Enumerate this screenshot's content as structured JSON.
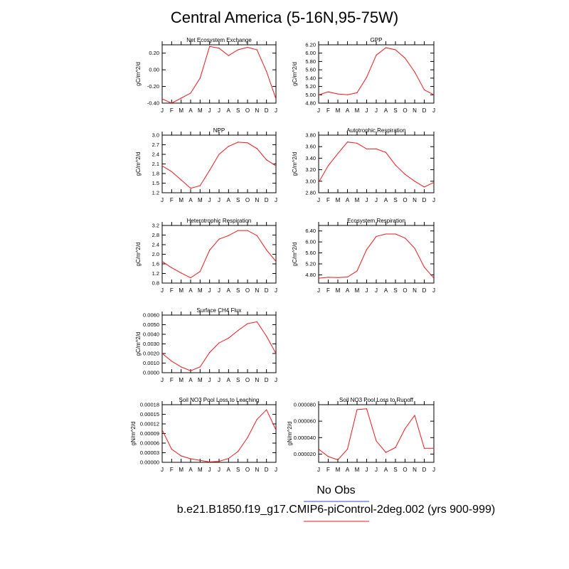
{
  "title": "Central America (5-16N,95-75W)",
  "legend": {
    "obs_label": "No Obs",
    "obs_color": "#3b47d6",
    "model_label": "b.e21.B1850.f19_g17.CMIP6-piControl-2deg.002 (yrs 900-999)",
    "model_color": "#e8191e"
  },
  "months": [
    "J",
    "F",
    "M",
    "A",
    "M",
    "J",
    "J",
    "A",
    "S",
    "O",
    "N",
    "D",
    "J"
  ],
  "chart_data": [
    {
      "type": "line",
      "title": "Net Ecosystem Exchange",
      "ylabel": "gC/m^2/d",
      "ylim": [
        -0.4,
        0.3
      ],
      "yticks": [
        -0.4,
        -0.2,
        0.0,
        0.2
      ],
      "ytick_labels": [
        "-0.40",
        "-0.20",
        "0.00",
        "0.20"
      ],
      "x": [
        "J",
        "F",
        "M",
        "A",
        "M",
        "J",
        "J",
        "A",
        "S",
        "O",
        "N",
        "D",
        "J"
      ],
      "series": [
        {
          "values": [
            -0.35,
            -0.4,
            -0.34,
            -0.28,
            -0.1,
            0.28,
            0.26,
            0.17,
            0.24,
            0.27,
            0.24,
            -0.02,
            -0.35
          ]
        }
      ]
    },
    {
      "type": "line",
      "title": "GPP",
      "ylabel": "gC/m^2/d",
      "ylim": [
        4.8,
        6.2
      ],
      "yticks": [
        4.8,
        5.0,
        5.2,
        5.4,
        5.6,
        5.8,
        6.0,
        6.2
      ],
      "ytick_labels": [
        "4.80",
        "5.00",
        "5.20",
        "5.40",
        "5.60",
        "5.80",
        "6.00",
        "6.20"
      ],
      "x": [
        "J",
        "F",
        "M",
        "A",
        "M",
        "J",
        "J",
        "A",
        "S",
        "O",
        "N",
        "D",
        "J"
      ],
      "series": [
        {
          "values": [
            5.0,
            5.07,
            5.02,
            5.0,
            5.05,
            5.42,
            5.95,
            6.13,
            6.08,
            5.88,
            5.55,
            5.12,
            5.0
          ]
        }
      ]
    },
    {
      "type": "line",
      "title": "NPP",
      "ylabel": "gC/m^2/d",
      "ylim": [
        1.2,
        3.0
      ],
      "yticks": [
        1.2,
        1.5,
        1.8,
        2.1,
        2.4,
        2.7,
        3.0
      ],
      "ytick_labels": [
        "1.2",
        "1.5",
        "1.8",
        "2.1",
        "2.4",
        "2.7",
        "3.0"
      ],
      "x": [
        "J",
        "F",
        "M",
        "A",
        "M",
        "J",
        "J",
        "A",
        "S",
        "O",
        "N",
        "D",
        "J"
      ],
      "series": [
        {
          "values": [
            2.04,
            1.86,
            1.6,
            1.34,
            1.42,
            1.9,
            2.4,
            2.65,
            2.78,
            2.76,
            2.58,
            2.23,
            2.04
          ]
        }
      ]
    },
    {
      "type": "line",
      "title": "Autotrophic Respiration",
      "ylabel": "gC/m^2/d",
      "ylim": [
        2.8,
        3.8
      ],
      "yticks": [
        2.8,
        3.0,
        3.2,
        3.4,
        3.6,
        3.8
      ],
      "ytick_labels": [
        "2.80",
        "3.00",
        "3.20",
        "3.40",
        "3.60",
        "3.80"
      ],
      "x": [
        "J",
        "F",
        "M",
        "A",
        "M",
        "J",
        "J",
        "A",
        "S",
        "O",
        "N",
        "D",
        "J"
      ],
      "series": [
        {
          "values": [
            2.98,
            3.27,
            3.48,
            3.68,
            3.66,
            3.56,
            3.56,
            3.5,
            3.28,
            3.12,
            3.0,
            2.9,
            2.98
          ]
        }
      ]
    },
    {
      "type": "line",
      "title": "Heterotrophic Respiration",
      "ylabel": "gC/m^2/d",
      "ylim": [
        0.8,
        3.2
      ],
      "yticks": [
        0.8,
        1.2,
        1.6,
        2.0,
        2.4,
        2.8,
        3.2
      ],
      "ytick_labels": [
        "0.8",
        "1.2",
        "1.6",
        "2.0",
        "2.4",
        "2.8",
        "3.2"
      ],
      "x": [
        "J",
        "F",
        "M",
        "A",
        "M",
        "J",
        "J",
        "A",
        "S",
        "O",
        "N",
        "D",
        "J"
      ],
      "series": [
        {
          "values": [
            1.7,
            1.44,
            1.22,
            1.02,
            1.28,
            2.17,
            2.63,
            2.78,
            2.99,
            2.99,
            2.78,
            2.18,
            1.7
          ]
        }
      ]
    },
    {
      "type": "line",
      "title": "Ecosystem Respiration",
      "ylabel": "gC/m^2/d",
      "ylim": [
        4.5,
        6.6
      ],
      "yticks": [
        4.8,
        5.2,
        5.6,
        6.0,
        6.4
      ],
      "ytick_labels": [
        "4.80",
        "5.20",
        "5.60",
        "6.00",
        "6.40"
      ],
      "x": [
        "J",
        "F",
        "M",
        "A",
        "M",
        "J",
        "J",
        "A",
        "S",
        "O",
        "N",
        "D",
        "J"
      ],
      "series": [
        {
          "values": [
            4.68,
            4.71,
            4.7,
            4.72,
            4.94,
            5.72,
            6.2,
            6.29,
            6.29,
            6.14,
            5.77,
            5.08,
            4.68
          ]
        }
      ]
    },
    {
      "type": "line",
      "title": "Surface CH4 Flux",
      "ylabel": "gC/m^2/d",
      "ylim": [
        0.0,
        0.006
      ],
      "yticks": [
        0.0,
        0.001,
        0.002,
        0.003,
        0.004,
        0.005,
        0.006
      ],
      "ytick_labels": [
        "0.0000",
        "0.0010",
        "0.0020",
        "0.0030",
        "0.0040",
        "0.0050",
        "0.0060"
      ],
      "x": [
        "J",
        "F",
        "M",
        "A",
        "M",
        "J",
        "J",
        "A",
        "S",
        "O",
        "N",
        "D",
        "J"
      ],
      "series": [
        {
          "values": [
            0.002,
            0.0012,
            0.0006,
            0.0002,
            0.0006,
            0.0021,
            0.0031,
            0.0036,
            0.0044,
            0.0051,
            0.0053,
            0.0038,
            0.002
          ]
        }
      ]
    },
    {
      "type": "line",
      "title": "Soil NO3 Pool Loss to Leaching",
      "ylabel": "gN/m^2/d",
      "ylim": [
        0.0,
        0.00018
      ],
      "yticks": [
        0.0,
        3e-05,
        6e-05,
        9e-05,
        0.00012,
        0.00015,
        0.00018
      ],
      "ytick_labels": [
        "0.00000",
        "0.00003",
        "0.00006",
        "0.00009",
        "0.00012",
        "0.00015",
        "0.00018"
      ],
      "x": [
        "J",
        "F",
        "M",
        "A",
        "M",
        "J",
        "J",
        "A",
        "S",
        "O",
        "N",
        "D",
        "J"
      ],
      "series": [
        {
          "values": [
            0.000101,
            4.1e-05,
            2e-05,
            1.1e-05,
            6e-06,
            1e-06,
            3e-06,
            1.2e-05,
            3.4e-05,
            7.7e-05,
            0.000134,
            0.000164,
            0.000101
          ]
        }
      ]
    },
    {
      "type": "line",
      "title": "Soil NO3 Pool Loss to Runoff",
      "ylabel": "gN/m^2/d",
      "ylim": [
        1e-05,
        8e-05
      ],
      "yticks": [
        2e-05,
        4e-05,
        6e-05,
        8e-05
      ],
      "ytick_labels": [
        "0.000020",
        "0.000040",
        "0.000060",
        "0.000080"
      ],
      "x": [
        "J",
        "F",
        "M",
        "A",
        "M",
        "J",
        "J",
        "A",
        "S",
        "O",
        "N",
        "D",
        "J"
      ],
      "series": [
        {
          "values": [
            2.6e-05,
            1.7e-05,
            1.3e-05,
            2.6e-05,
            7.4e-05,
            7.5e-05,
            3.6e-05,
            2.2e-05,
            2.8e-05,
            5.1e-05,
            6.7e-05,
            2.7e-05,
            2.7e-05
          ]
        }
      ]
    }
  ]
}
